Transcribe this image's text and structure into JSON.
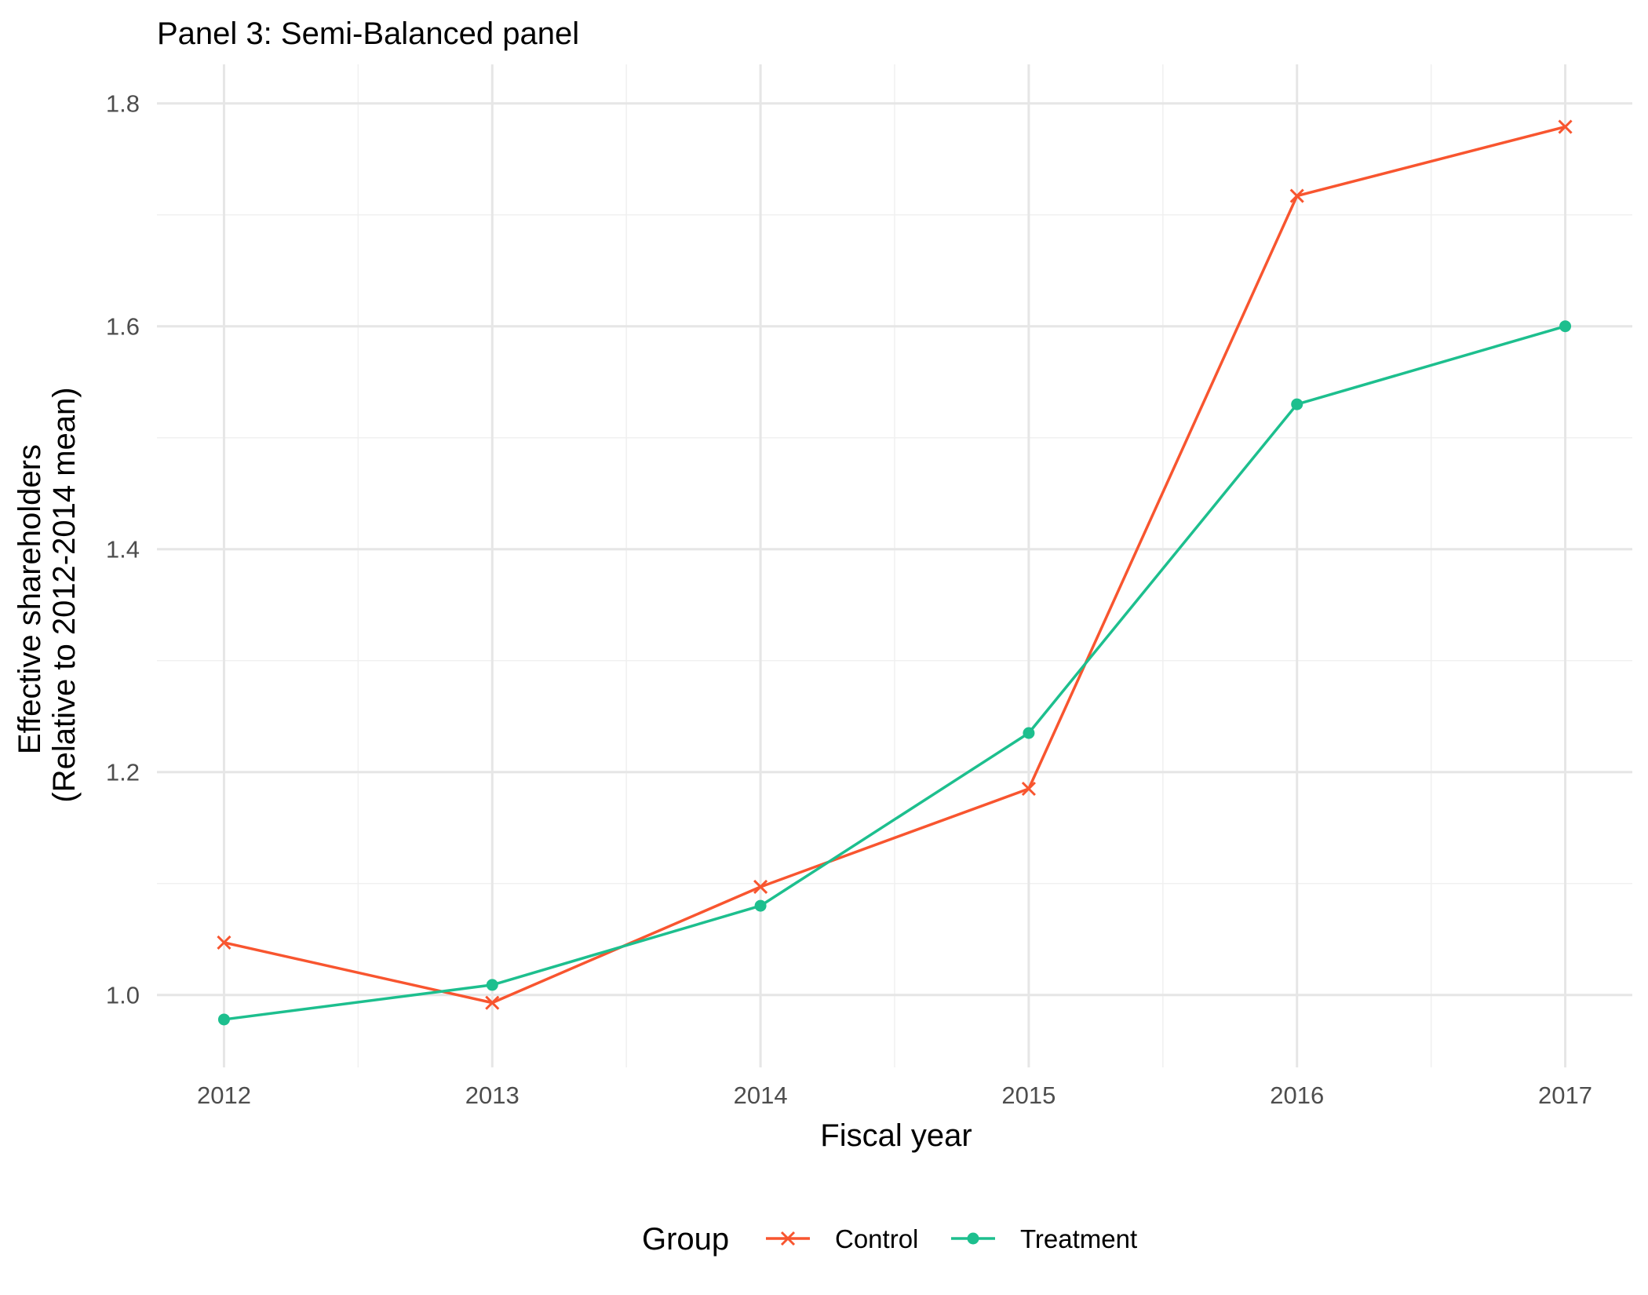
{
  "chart_data": {
    "type": "line",
    "title": "Panel 3: Semi-Balanced panel",
    "xlabel": "Fiscal year",
    "ylabel": [
      "Effective shareholders",
      "(Relative to 2012-2014 mean)"
    ],
    "x": [
      2012,
      2013,
      2014,
      2015,
      2016,
      2017
    ],
    "xlim": [
      2011.75,
      2017.25
    ],
    "ylim": [
      0.935,
      1.835
    ],
    "y_ticks": [
      1.0,
      1.2,
      1.4,
      1.6,
      1.8
    ],
    "y_tick_labels": [
      "1.0",
      "1.2",
      "1.4",
      "1.6",
      "1.8"
    ],
    "x_tick_labels": [
      "2012",
      "2013",
      "2014",
      "2015",
      "2016",
      "2017"
    ],
    "grid": true,
    "legend": {
      "title": "Group",
      "position": "bottom"
    },
    "series": [
      {
        "name": "Control",
        "color": "#f8552f",
        "marker": "x",
        "values": [
          1.047,
          0.993,
          1.097,
          1.185,
          1.717,
          1.779
        ]
      },
      {
        "name": "Treatment",
        "color": "#1dbf8e",
        "marker": "circle",
        "values": [
          0.978,
          1.009,
          1.08,
          1.235,
          1.53,
          1.6
        ]
      }
    ]
  }
}
